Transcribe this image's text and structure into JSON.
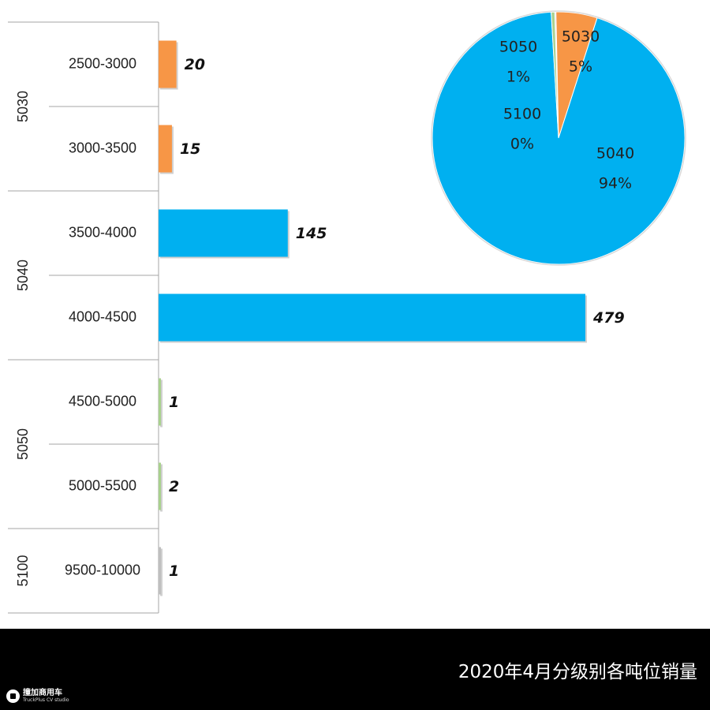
{
  "chart_data": [
    {
      "type": "bar",
      "orientation": "horizontal",
      "groups": [
        {
          "name": "5030",
          "color": "#F79646",
          "categories": [
            "2500-3000",
            "3000-3500"
          ],
          "values": [
            20,
            15
          ]
        },
        {
          "name": "5040",
          "color": "#00B0F0",
          "categories": [
            "3500-4000",
            "4000-4500"
          ],
          "values": [
            145,
            479
          ]
        },
        {
          "name": "5050",
          "color": "#A9D18E",
          "categories": [
            "4500-5000",
            "5000-5500"
          ],
          "values": [
            1,
            2
          ]
        },
        {
          "name": "5100",
          "color": "#BFBFBF",
          "categories": [
            "9500-10000"
          ],
          "values": [
            1
          ]
        }
      ],
      "xlim": [
        0,
        479
      ],
      "grid": false,
      "data_labels": "bold-italic"
    },
    {
      "type": "pie",
      "slices": [
        {
          "name": "5030",
          "percent_label": "5%",
          "value": 35,
          "color": "#F79646"
        },
        {
          "name": "5040",
          "percent_label": "94%",
          "value": 624,
          "color": "#00B0F0"
        },
        {
          "name": "5050",
          "percent_label": "1%",
          "value": 3,
          "color": "#A9D18E"
        },
        {
          "name": "5100",
          "percent_label": "0%",
          "value": 1,
          "color": "#BFBFBF"
        }
      ]
    }
  ],
  "footer": {
    "title": "2020年4月分级别各吨位销量",
    "brand_cn": "撞加商用车",
    "brand_en": "TruckPlus CV studio"
  }
}
